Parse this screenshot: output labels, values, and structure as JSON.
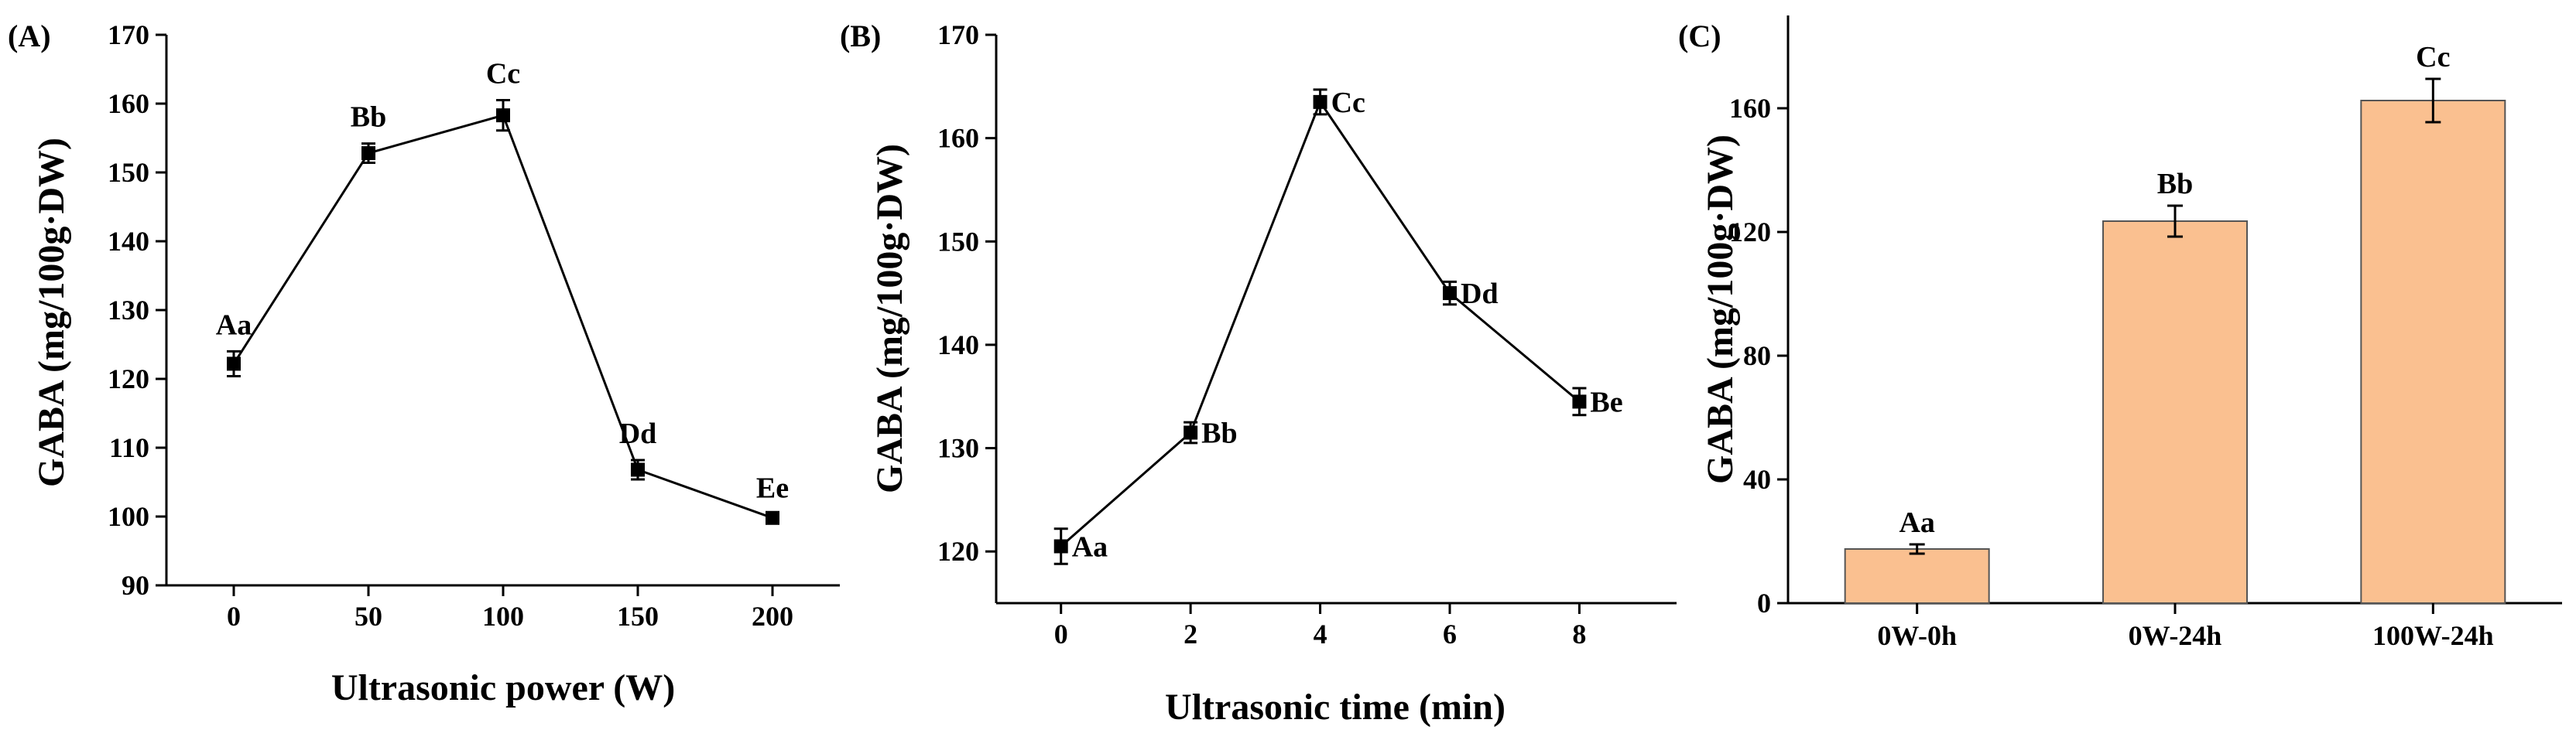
{
  "chart_data": [
    {
      "panel_label": "(A)",
      "type": "line",
      "xlabel": "Ultrasonic power (W)",
      "ylabel": "GABA (mg/100g·DW)",
      "xlim": [
        -25,
        225
      ],
      "ylim": [
        90,
        170
      ],
      "x_ticks": [
        0,
        50,
        100,
        150,
        200
      ],
      "y_ticks": [
        90,
        100,
        110,
        120,
        130,
        140,
        150,
        160,
        170
      ],
      "x": [
        0,
        50,
        100,
        150,
        200
      ],
      "y": [
        122.2,
        152.8,
        158.3,
        106.8,
        99.8
      ],
      "err": [
        1.8,
        1.4,
        2.2,
        1.4,
        0.5
      ],
      "labels": [
        "Aa",
        "Bb",
        "Cc",
        "Dd",
        "Ee"
      ],
      "label_position": "above",
      "marker_color": "#000000"
    },
    {
      "panel_label": "(B)",
      "type": "line",
      "xlabel": "Ultrasonic time (min)",
      "ylabel": "GABA (mg/100g·DW)",
      "xlim": [
        -1,
        9.5
      ],
      "ylim": [
        115,
        170
      ],
      "x_ticks": [
        0,
        2,
        4,
        6,
        8
      ],
      "y_ticks": [
        120,
        130,
        140,
        150,
        160,
        170
      ],
      "x": [
        0,
        2,
        4,
        6,
        8
      ],
      "y": [
        120.5,
        131.5,
        163.5,
        145.0,
        134.5
      ],
      "err": [
        1.7,
        1.0,
        1.2,
        1.1,
        1.3
      ],
      "labels": [
        "Aa",
        "Bb",
        "Cc",
        "Dd",
        "Be"
      ],
      "label_position": "right",
      "marker_color": "#000000"
    },
    {
      "panel_label": "(C)",
      "type": "bar",
      "xlabel": "",
      "ylabel": "GABA (mg/100g·DW)",
      "ylim": [
        0,
        190
      ],
      "y_ticks": [
        0,
        40,
        80,
        120,
        160
      ],
      "categories": [
        "0W-0h",
        "0W-24h",
        "100W-24h"
      ],
      "values": [
        17.5,
        123.5,
        162.5
      ],
      "err": [
        1.5,
        5.0,
        7.0
      ],
      "labels": [
        "Aa",
        "Bb",
        "Cc"
      ],
      "bar_color": "#FAC090"
    }
  ]
}
